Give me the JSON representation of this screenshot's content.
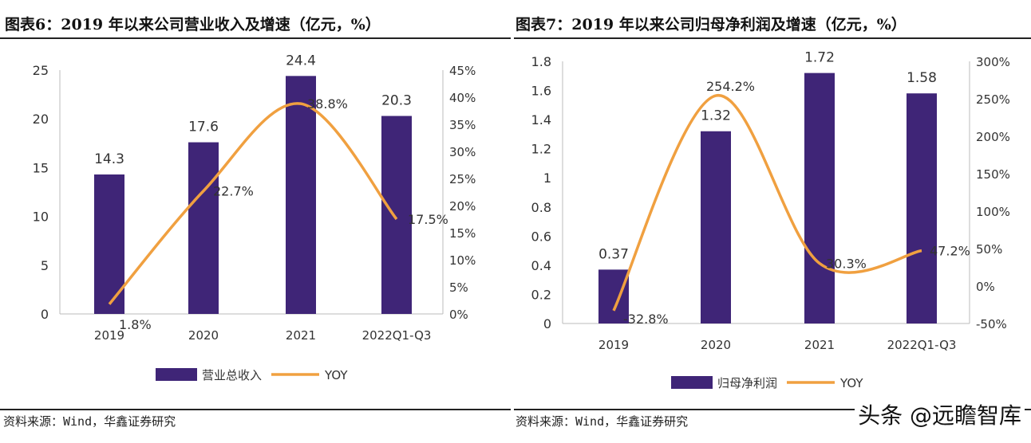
{
  "chart_data": [
    {
      "type": "bar+line",
      "title": "图表6：2019 年以来公司营业收入及增速（亿元，%）",
      "categories": [
        "2019",
        "2020",
        "2021",
        "2022Q1-Q3"
      ],
      "series": [
        {
          "name": "营业总收入",
          "type": "bar",
          "axis": "left",
          "values": [
            14.3,
            17.6,
            24.4,
            20.3
          ],
          "labels": [
            "14.3",
            "17.6",
            "24.4",
            "20.3"
          ]
        },
        {
          "name": "YOY",
          "type": "line",
          "axis": "right",
          "values": [
            1.8,
            22.7,
            38.8,
            17.5
          ],
          "labels": [
            "1.8%",
            "22.7%",
            "38.8%",
            "17.5%"
          ]
        }
      ],
      "ylim_left": [
        0,
        25
      ],
      "yticks_left": [
        "0",
        "5",
        "10",
        "15",
        "20",
        "25"
      ],
      "ylim_right": [
        0,
        45
      ],
      "yticks_right": [
        "0%",
        "5%",
        "10%",
        "15%",
        "20%",
        "25%",
        "30%",
        "35%",
        "40%",
        "45%"
      ],
      "legend": "bottom",
      "grid": false,
      "source": "资料来源：Wind，华鑫证券研究"
    },
    {
      "type": "bar+line",
      "title": "图表7：2019 年以来公司归母净利润及增速（亿元，%）",
      "categories": [
        "2019",
        "2020",
        "2021",
        "2022Q1-Q3"
      ],
      "series": [
        {
          "name": "归母净利润",
          "type": "bar",
          "axis": "left",
          "values": [
            0.37,
            1.32,
            1.72,
            1.58
          ],
          "labels": [
            "0.37",
            "1.32",
            "1.72",
            "1.58"
          ]
        },
        {
          "name": "YOY",
          "type": "line",
          "axis": "right",
          "values": [
            -32.8,
            254.2,
            30.3,
            47.2
          ],
          "labels": [
            "-32.8%",
            "254.2%",
            "30.3%",
            "47.2%"
          ]
        }
      ],
      "ylim_left": [
        0,
        1.8
      ],
      "yticks_left": [
        "0",
        "0.2",
        "0.4",
        "0.6",
        "0.8",
        "1",
        "1.2",
        "1.4",
        "1.6",
        "1.8"
      ],
      "ylim_right": [
        -50,
        300
      ],
      "yticks_right": [
        "-50%",
        "0%",
        "50%",
        "100%",
        "150%",
        "200%",
        "250%",
        "300%"
      ],
      "legend": "bottom",
      "grid": false,
      "source": "资料来源：Wind，华鑫证券研究"
    }
  ],
  "colors": {
    "bar": "#3f2577",
    "line": "#f0a040"
  },
  "watermark": "头条 @远瞻智库"
}
